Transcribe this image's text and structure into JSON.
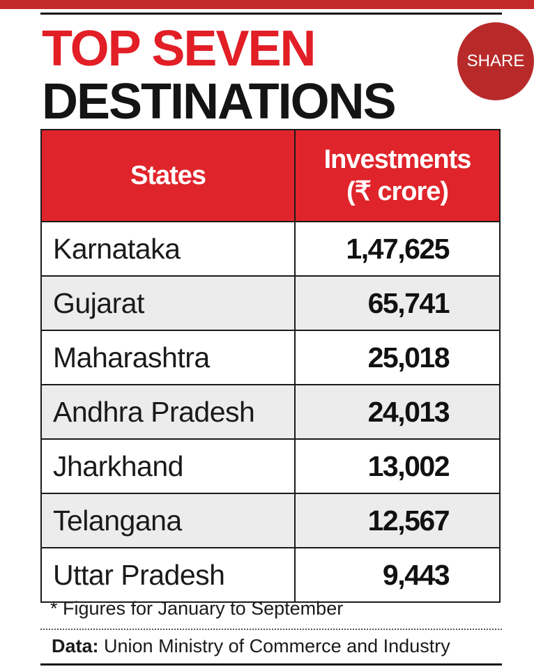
{
  "header": {
    "title_line1": "TOP SEVEN",
    "title_line2": "DESTINATIONS",
    "share_label": "SHARE"
  },
  "colors": {
    "accent_red": "#e21e26",
    "share_button": "#b82a2a",
    "header_row": "#e0242b",
    "alt_row": "#ececec"
  },
  "chart_data": {
    "type": "table",
    "title": "TOP SEVEN DESTINATIONS",
    "columns": [
      "States",
      "Investments (₹ crore)"
    ],
    "column_header_lines": {
      "states": "States",
      "investments_line1": "Investments",
      "investments_line2": "(₹ crore)"
    },
    "rows": [
      {
        "state": "Karnataka",
        "value": "1,47,625"
      },
      {
        "state": "Gujarat",
        "value": "65,741"
      },
      {
        "state": "Maharashtra",
        "value": "25,018"
      },
      {
        "state": "Andhra Pradesh",
        "value": "24,013"
      },
      {
        "state": "Jharkhand",
        "value": "13,002"
      },
      {
        "state": "Telangana",
        "value": "12,567"
      },
      {
        "state": "Uttar Pradesh",
        "value": "9,443"
      }
    ],
    "values": [
      147625,
      65741,
      25018,
      24013,
      13002,
      12567,
      9443
    ]
  },
  "footer": {
    "note": "* Figures for January to September",
    "source_label": "Data:",
    "source_text": "Union Ministry of Commerce and Industry"
  }
}
